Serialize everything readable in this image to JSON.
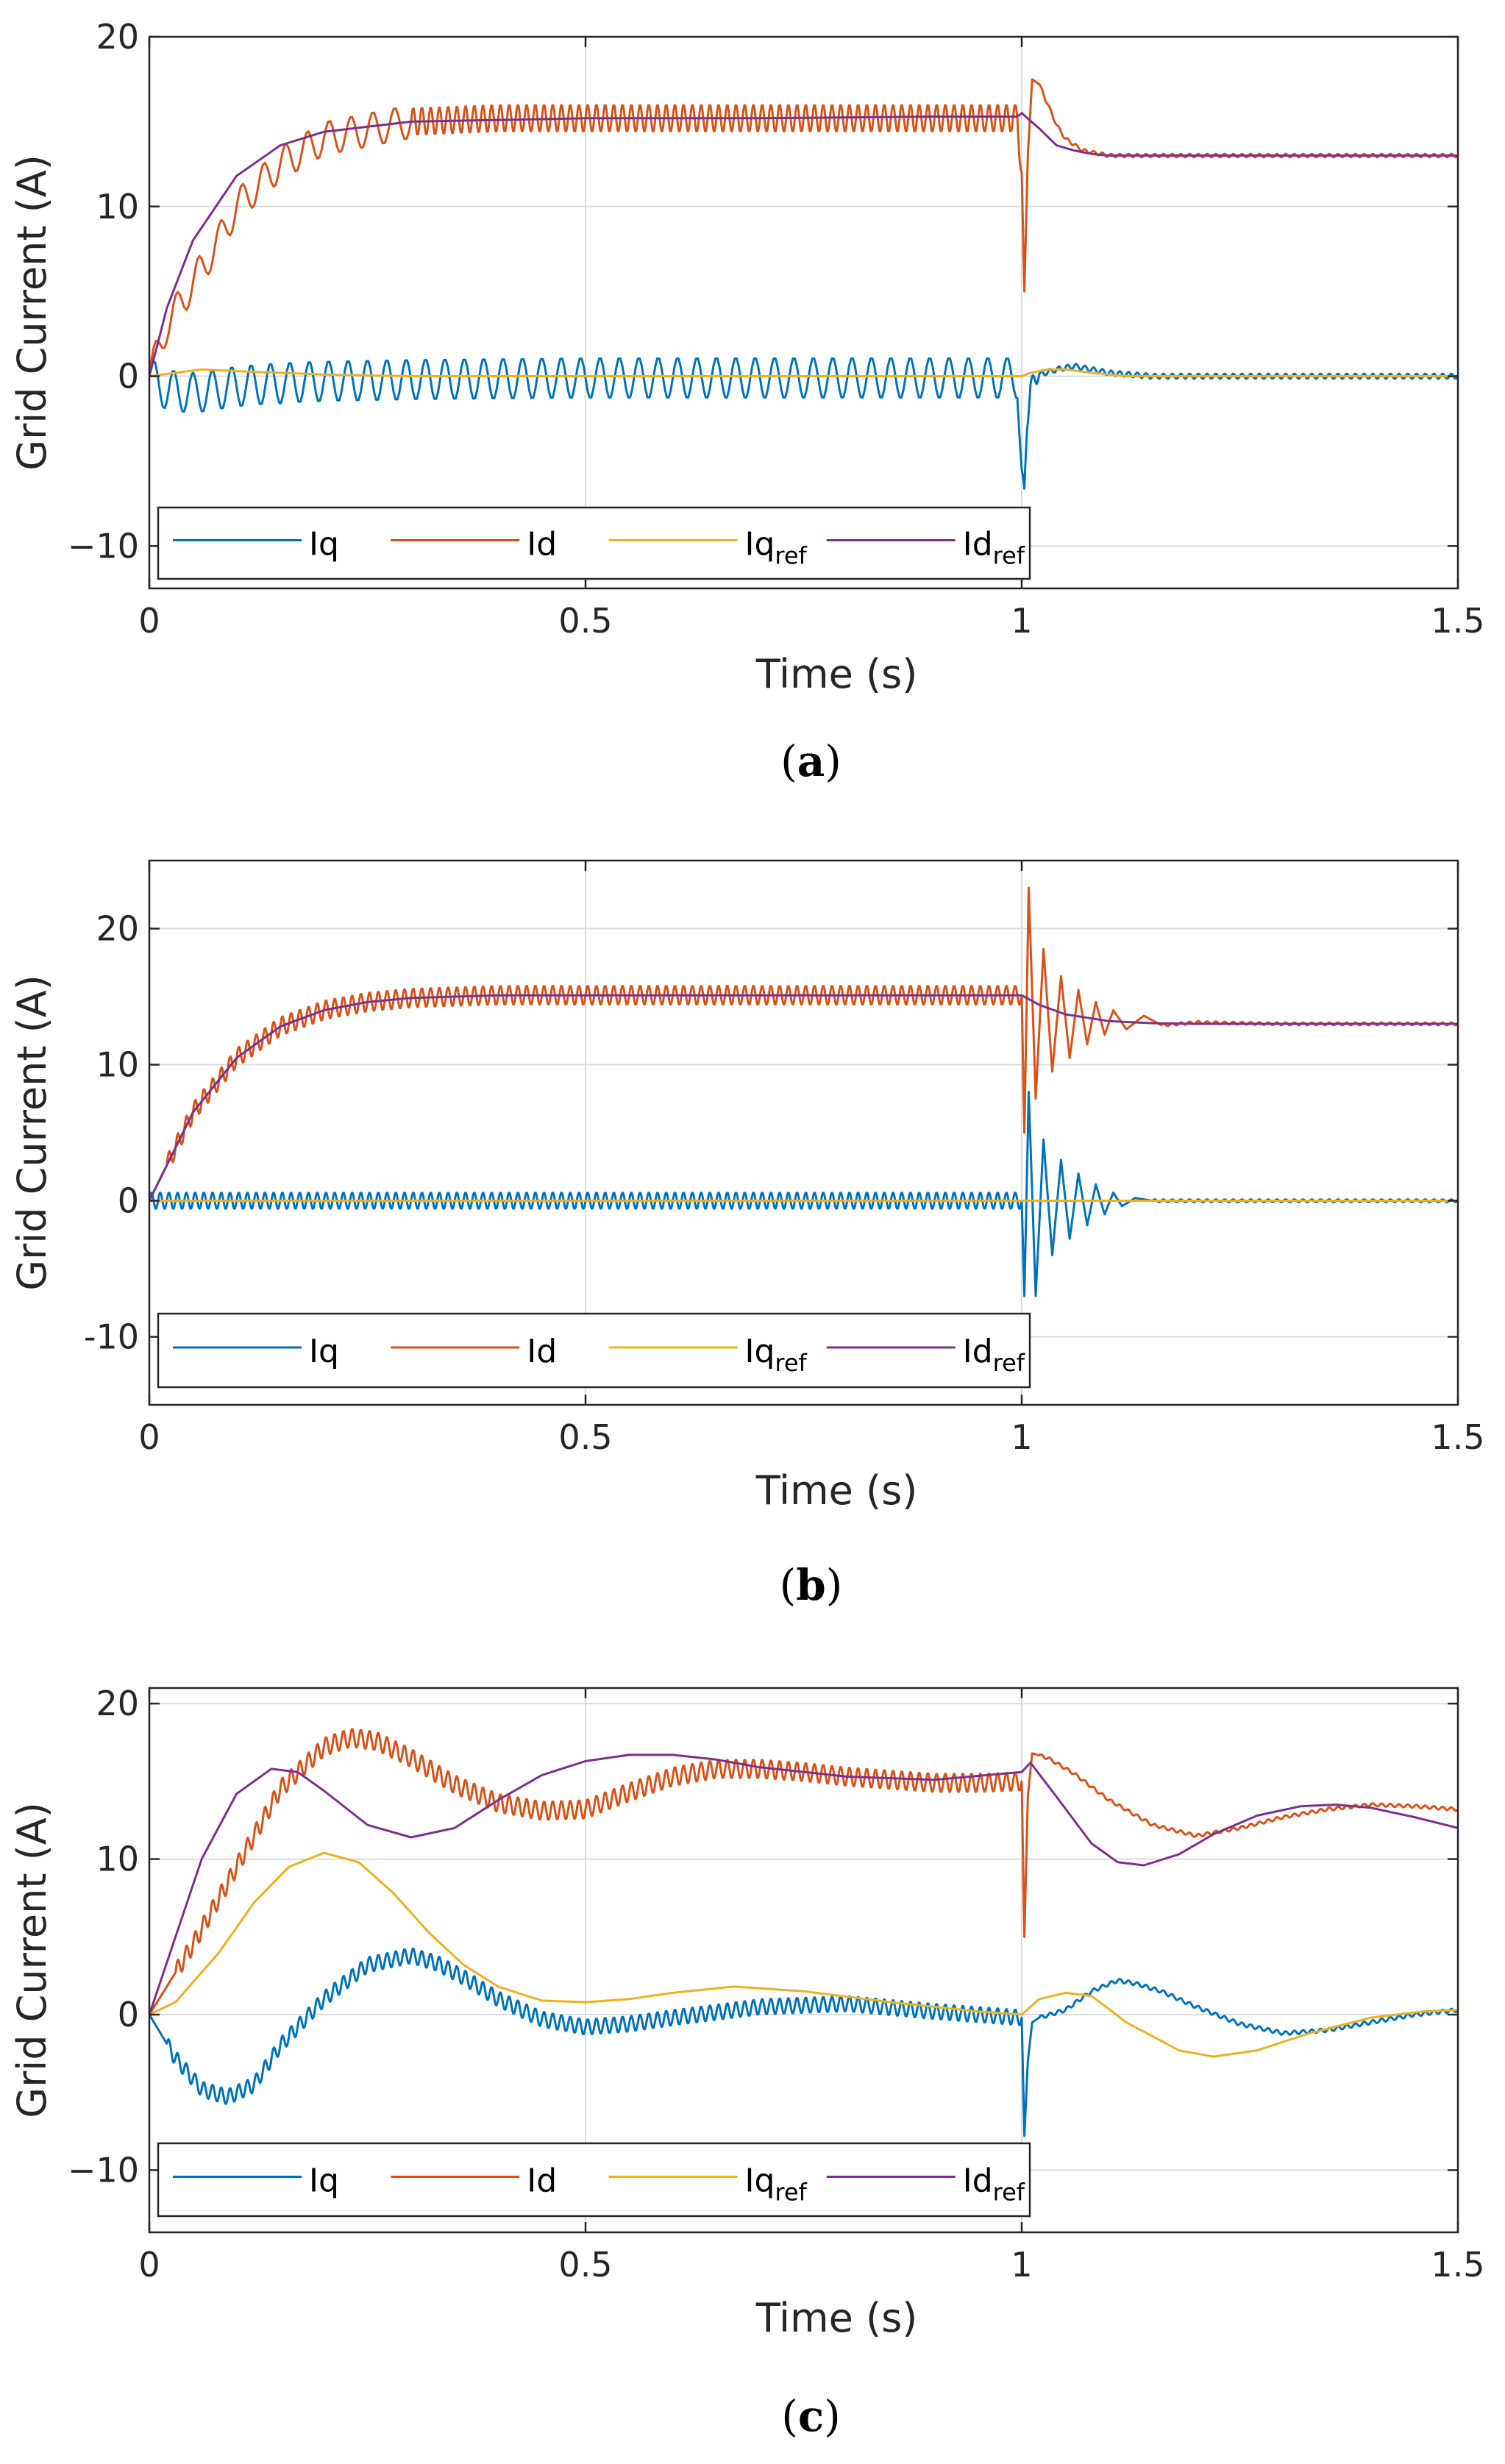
{
  "chart_data": [
    {
      "id": "a",
      "type": "line",
      "caption": {
        "open": "(",
        "label": "a",
        "close": ")"
      },
      "title": "",
      "xlabel": "Time (s)",
      "ylabel": "Grid Current (A)",
      "xlim": [
        0,
        1.5
      ],
      "ylim": [
        -12.5,
        20
      ],
      "xticks": [
        0,
        0.5,
        1,
        1.5
      ],
      "xtick_labels": [
        "0",
        "0.5",
        "1",
        "1.5"
      ],
      "yticks": [
        -10,
        0,
        10,
        20
      ],
      "ytick_labels": [
        "−10",
        "0",
        "10",
        "20"
      ],
      "grid": true,
      "legend": {
        "placement": "bottom-left",
        "entries": [
          {
            "base": "Iq",
            "sub": ""
          },
          {
            "base": "Id",
            "sub": ""
          },
          {
            "base": "Iq",
            "sub": "ref"
          },
          {
            "base": "Id",
            "sub": "ref"
          }
        ]
      },
      "series": [
        {
          "name": "Iq",
          "color": "#0072BD",
          "x": [
            0,
            0.01,
            0.02,
            0.05,
            0.1,
            0.15,
            0.2,
            0.3,
            0.4,
            0.5,
            0.6,
            0.7,
            0.8,
            0.9,
            0.995,
            1.0,
            1.003,
            1.006,
            1.01,
            1.02,
            1.04,
            1.06,
            1.08,
            1.1,
            1.15,
            1.2,
            1.3,
            1.4,
            1.5
          ],
          "y": [
            0,
            -0.5,
            -0.8,
            -1.0,
            -0.6,
            -0.4,
            -0.3,
            -0.2,
            -0.15,
            -0.1,
            -0.1,
            -0.1,
            -0.1,
            -0.1,
            -0.1,
            -5.5,
            -7.0,
            -3.0,
            -0.5,
            0.1,
            0.4,
            0.6,
            0.4,
            0.2,
            0,
            0,
            0,
            0,
            0
          ],
          "ripple": [
            [
              0,
              1.0,
              1.2,
              45
            ],
            [
              1.0,
              1.02,
              0.4,
              100
            ],
            [
              1.02,
              1.5,
              0.15,
              100
            ]
          ]
        },
        {
          "name": "Id",
          "color": "#D95319",
          "x": [
            0,
            0.01,
            0.02,
            0.03,
            0.05,
            0.08,
            0.1,
            0.15,
            0.2,
            0.3,
            0.4,
            0.5,
            0.7,
            0.9,
            0.995,
            1.0,
            1.003,
            1.007,
            1.012,
            1.02,
            1.03,
            1.04,
            1.05,
            1.07,
            1.1,
            1.15,
            1.2,
            1.3,
            1.5
          ],
          "y": [
            0,
            1.5,
            3.0,
            3.8,
            5.5,
            8.0,
            10.0,
            12.5,
            14.0,
            15.0,
            15.2,
            15.2,
            15.2,
            15.2,
            15.2,
            12.0,
            5.0,
            13.0,
            17.5,
            17.2,
            16.0,
            14.8,
            14.0,
            13.3,
            13.0,
            13.0,
            13.0,
            13.0,
            13.0
          ],
          "ripple": [
            [
              0,
              0.3,
              1.0,
              40
            ],
            [
              0.3,
              1.0,
              0.8,
              100
            ],
            [
              1.02,
              1.5,
              0.1,
              100
            ]
          ]
        },
        {
          "name": "Iqref",
          "color": "#EDB120",
          "x": [
            0,
            0.03,
            0.06,
            0.1,
            0.2,
            0.3,
            1.0,
            1.01,
            1.03,
            1.05,
            1.08,
            1.12,
            1.2,
            1.5
          ],
          "y": [
            0,
            0.2,
            0.4,
            0.3,
            0.1,
            0,
            0,
            0.2,
            0.4,
            0.4,
            0.2,
            0,
            0,
            0
          ]
        },
        {
          "name": "Idref",
          "color": "#7E2F8E",
          "x": [
            0,
            0.02,
            0.05,
            0.1,
            0.15,
            0.2,
            0.3,
            0.4,
            0.5,
            0.7,
            0.9,
            0.995,
            1.0,
            1.02,
            1.04,
            1.06,
            1.08,
            1.1,
            1.15,
            1.3,
            1.5
          ],
          "y": [
            0,
            4.0,
            8.0,
            11.8,
            13.6,
            14.4,
            15.0,
            15.1,
            15.2,
            15.2,
            15.3,
            15.3,
            15.5,
            14.6,
            13.6,
            13.3,
            13.1,
            13.0,
            13.0,
            13.0,
            13.0
          ]
        }
      ]
    },
    {
      "id": "b",
      "type": "line",
      "caption": {
        "open": "(",
        "label": "b",
        "close": ")"
      },
      "title": "",
      "xlabel": "Time (s)",
      "ylabel": "Grid Current (A)",
      "xlim": [
        0,
        1.5
      ],
      "ylim": [
        -15,
        25
      ],
      "xticks": [
        0,
        0.5,
        1,
        1.5
      ],
      "xtick_labels": [
        "0",
        "0.5",
        "1",
        "1.5"
      ],
      "yticks": [
        -10,
        0,
        10,
        20
      ],
      "ytick_labels": [
        "-10",
        "0",
        "10",
        "20"
      ],
      "grid": true,
      "legend": {
        "placement": "bottom-left",
        "entries": [
          {
            "base": "Iq",
            "sub": ""
          },
          {
            "base": "Id",
            "sub": ""
          },
          {
            "base": "Iq",
            "sub": "ref"
          },
          {
            "base": "Id",
            "sub": "ref"
          }
        ]
      },
      "series": [
        {
          "name": "Iq",
          "color": "#0072BD",
          "x": [
            0,
            1.0,
            1.003,
            1.008,
            1.016,
            1.025,
            1.035,
            1.045,
            1.055,
            1.065,
            1.075,
            1.085,
            1.095,
            1.105,
            1.115,
            1.13,
            1.15,
            1.5
          ],
          "y": [
            0,
            0,
            -7.0,
            8.0,
            -7.0,
            4.5,
            -4.0,
            3.0,
            -2.8,
            2.0,
            -1.8,
            1.2,
            -1.0,
            0.6,
            -0.4,
            0.2,
            0,
            0
          ],
          "ripple": [
            [
              0,
              1.0,
              0.6,
              100
            ],
            [
              1.15,
              1.5,
              0.1,
              100
            ]
          ]
        },
        {
          "name": "Id",
          "color": "#D95319",
          "x": [
            0,
            0.05,
            0.1,
            0.15,
            0.2,
            0.25,
            0.3,
            0.4,
            0.5,
            1.0,
            1.003,
            1.008,
            1.016,
            1.025,
            1.035,
            1.045,
            1.055,
            1.065,
            1.075,
            1.085,
            1.095,
            1.105,
            1.12,
            1.14,
            1.16,
            1.2,
            1.3,
            1.5
          ],
          "y": [
            0,
            6.5,
            10.5,
            12.8,
            14.0,
            14.6,
            14.9,
            15.1,
            15.1,
            15.1,
            5.0,
            23.0,
            7.5,
            18.5,
            9.5,
            16.5,
            10.5,
            15.5,
            11.5,
            14.6,
            12.2,
            14.0,
            12.6,
            13.6,
            12.9,
            13.1,
            13.0,
            13.0
          ],
          "ripple": [
            [
              0.02,
              1.0,
              0.7,
              100
            ],
            [
              1.16,
              1.5,
              0.1,
              100
            ]
          ]
        },
        {
          "name": "Iqref",
          "color": "#EDB120",
          "x": [
            0,
            1.5
          ],
          "y": [
            0,
            0
          ]
        },
        {
          "name": "Idref",
          "color": "#7E2F8E",
          "x": [
            0,
            0.05,
            0.1,
            0.15,
            0.2,
            0.25,
            0.3,
            0.4,
            0.5,
            0.7,
            1.0,
            1.02,
            1.05,
            1.1,
            1.15,
            1.2,
            1.3,
            1.5
          ],
          "y": [
            0,
            6.5,
            10.5,
            12.8,
            14.0,
            14.6,
            14.9,
            15.1,
            15.1,
            15.1,
            15.1,
            14.4,
            13.7,
            13.2,
            13.05,
            13.0,
            13.0,
            13.0
          ]
        }
      ]
    },
    {
      "id": "c",
      "type": "line",
      "caption": {
        "open": "(",
        "label": "c",
        "close": ")"
      },
      "title": "",
      "xlabel": "Time (s)",
      "ylabel": "Grid Current (A)",
      "xlim": [
        0,
        1.5
      ],
      "ylim": [
        -14,
        21
      ],
      "xticks": [
        0,
        0.5,
        1,
        1.5
      ],
      "xtick_labels": [
        "0",
        "0.5",
        "1",
        "1.5"
      ],
      "yticks": [
        -10,
        0,
        10,
        20
      ],
      "ytick_labels": [
        "−10",
        "0",
        "10",
        "20"
      ],
      "grid": true,
      "legend": {
        "placement": "bottom-left",
        "entries": [
          {
            "base": "Iq",
            "sub": ""
          },
          {
            "base": "Id",
            "sub": ""
          },
          {
            "base": "Iq",
            "sub": "ref"
          },
          {
            "base": "Id",
            "sub": "ref"
          }
        ]
      },
      "series": [
        {
          "name": "Iq",
          "color": "#0072BD",
          "x": [
            0,
            0.03,
            0.06,
            0.09,
            0.12,
            0.15,
            0.2,
            0.25,
            0.3,
            0.33,
            0.36,
            0.4,
            0.45,
            0.5,
            0.55,
            0.6,
            0.7,
            0.8,
            0.9,
            1.0,
            1.003,
            1.007,
            1.012,
            1.02,
            1.05,
            1.08,
            1.11,
            1.13,
            1.16,
            1.2,
            1.25,
            1.3,
            1.35,
            1.4,
            1.45,
            1.5
          ],
          "y": [
            0,
            -2.8,
            -4.8,
            -5.3,
            -4.5,
            -2.0,
            1.0,
            3.2,
            3.8,
            3.3,
            2.4,
            1.0,
            -0.3,
            -0.8,
            -0.6,
            -0.2,
            0.5,
            0.7,
            0.2,
            -0.2,
            -7.8,
            -3.0,
            -0.5,
            -0.2,
            0.3,
            1.5,
            2.2,
            2.0,
            1.5,
            0.5,
            -0.6,
            -1.2,
            -1.0,
            -0.5,
            0,
            0.3
          ],
          "ripple": [
            [
              0.02,
              1.0,
              0.5,
              100
            ],
            [
              1.02,
              1.5,
              0.12,
              100
            ]
          ]
        },
        {
          "name": "Id",
          "color": "#D95319",
          "x": [
            0,
            0.05,
            0.1,
            0.15,
            0.2,
            0.23,
            0.26,
            0.3,
            0.35,
            0.4,
            0.45,
            0.5,
            0.55,
            0.6,
            0.65,
            0.7,
            0.75,
            0.8,
            0.85,
            0.9,
            0.95,
            1.0,
            1.003,
            1.007,
            1.012,
            1.03,
            1.06,
            1.1,
            1.15,
            1.2,
            1.25,
            1.3,
            1.35,
            1.4,
            1.45,
            1.5
          ],
          "y": [
            0,
            4.5,
            9.5,
            14.5,
            17.2,
            17.8,
            17.6,
            16.5,
            14.8,
            13.6,
            13.1,
            13.2,
            14.3,
            15.3,
            15.8,
            15.8,
            15.6,
            15.3,
            15.1,
            14.9,
            14.9,
            15.0,
            5.0,
            14.0,
            16.8,
            16.5,
            15.5,
            13.8,
            12.2,
            11.5,
            12.0,
            12.7,
            13.2,
            13.5,
            13.4,
            13.2
          ],
          "ripple": [
            [
              0.03,
              1.0,
              0.6,
              100
            ],
            [
              1.02,
              1.5,
              0.1,
              100
            ]
          ]
        },
        {
          "name": "Iqref",
          "color": "#EDB120",
          "x": [
            0,
            0.03,
            0.08,
            0.12,
            0.16,
            0.2,
            0.24,
            0.28,
            0.32,
            0.36,
            0.4,
            0.45,
            0.5,
            0.55,
            0.6,
            0.67,
            0.75,
            0.85,
            0.95,
            1.0,
            1.02,
            1.05,
            1.08,
            1.12,
            1.18,
            1.22,
            1.27,
            1.33,
            1.4,
            1.46,
            1.5
          ],
          "y": [
            0,
            0.8,
            4.0,
            7.2,
            9.5,
            10.4,
            9.8,
            7.8,
            5.3,
            3.2,
            1.8,
            0.9,
            0.8,
            1.0,
            1.4,
            1.8,
            1.5,
            0.8,
            0.2,
            0,
            1.0,
            1.4,
            1.2,
            -0.5,
            -2.3,
            -2.7,
            -2.3,
            -1.2,
            -0.2,
            0.2,
            0.3
          ]
        },
        {
          "name": "Idref",
          "color": "#7E2F8E",
          "x": [
            0,
            0.03,
            0.06,
            0.1,
            0.14,
            0.17,
            0.2,
            0.25,
            0.3,
            0.35,
            0.4,
            0.45,
            0.5,
            0.55,
            0.6,
            0.65,
            0.7,
            0.8,
            0.9,
            1.0,
            1.01,
            1.04,
            1.08,
            1.11,
            1.14,
            1.18,
            1.22,
            1.27,
            1.32,
            1.36,
            1.4,
            1.45,
            1.5
          ],
          "y": [
            0,
            5.0,
            10.0,
            14.2,
            15.8,
            15.6,
            14.4,
            12.2,
            11.4,
            12.0,
            13.8,
            15.4,
            16.3,
            16.7,
            16.7,
            16.4,
            15.9,
            15.3,
            15.1,
            15.6,
            16.2,
            14.0,
            11.0,
            9.8,
            9.6,
            10.3,
            11.6,
            12.8,
            13.4,
            13.5,
            13.3,
            12.7,
            12.0
          ]
        }
      ]
    }
  ]
}
